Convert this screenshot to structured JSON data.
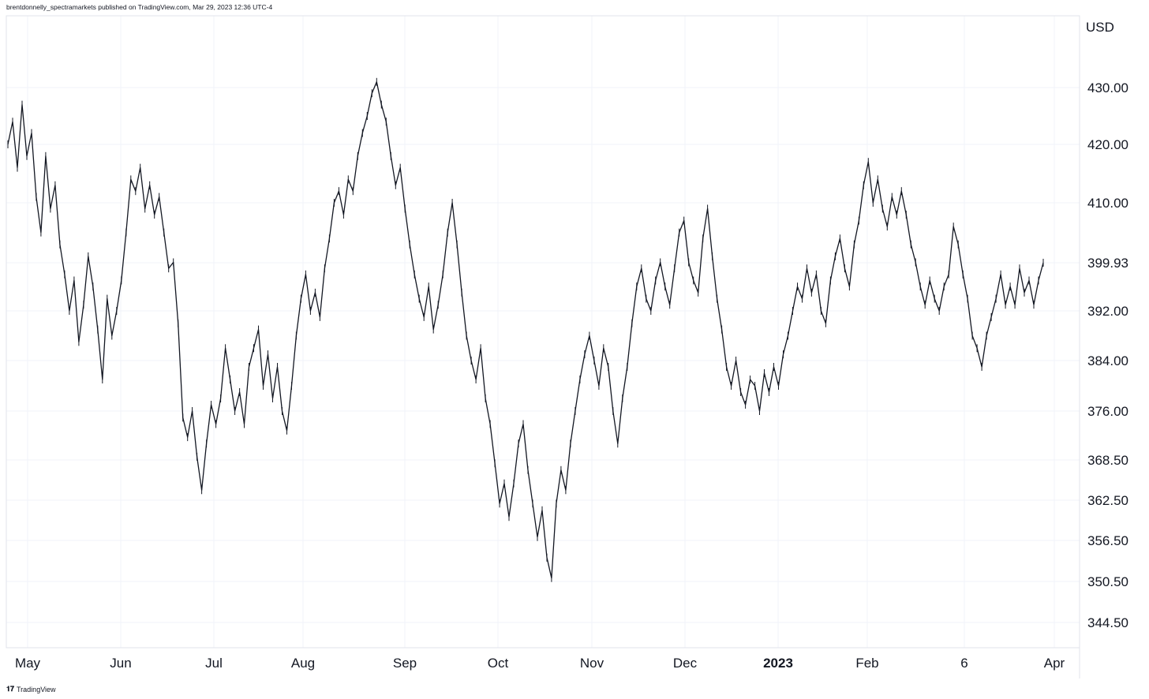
{
  "header": {
    "publisher_line": "brentdonnelly_spectramarkets published on TradingView.com, Mar 29, 2023 12:36 UTC-4"
  },
  "footer": {
    "brand": "TradingView",
    "logo_icon": "tradingview-logo-icon"
  },
  "chart_data": {
    "type": "line",
    "currency_label": "USD",
    "current_price_label": "399.93",
    "y_ticks": [
      "430.00",
      "420.00",
      "410.00",
      "399.93",
      "392.00",
      "384.00",
      "376.00",
      "368.50",
      "362.50",
      "356.50",
      "350.50",
      "344.50"
    ],
    "x_ticks": [
      "May",
      "Jun",
      "Jul",
      "Aug",
      "Sep",
      "Oct",
      "Nov",
      "Dec",
      "2023",
      "Feb",
      "6",
      "Apr"
    ],
    "x_ticks_bold": [
      "2023"
    ],
    "grid": true,
    "colors": {
      "line": "#131722",
      "grid": "#f0f3fa",
      "axis": "#e0e3eb",
      "text": "#131722"
    },
    "series": [
      {
        "values": [
          420,
          424,
          416,
          427,
          418,
          422,
          411,
          405,
          418,
          409,
          413,
          403,
          398,
          392,
          397,
          387,
          393,
          401,
          396,
          389,
          381,
          394,
          388,
          392,
          397,
          405,
          414,
          412,
          416,
          409,
          413,
          408,
          411,
          405,
          399,
          400,
          390,
          375,
          372,
          376,
          369,
          364,
          371,
          377,
          374,
          378,
          386,
          381,
          376,
          379,
          374,
          383,
          386,
          389,
          380,
          385,
          378,
          383,
          376,
          373,
          380,
          388,
          394,
          398,
          392,
          395,
          391,
          399,
          404,
          410,
          412,
          408,
          414,
          412,
          418,
          422,
          425,
          429,
          431,
          427,
          424,
          418,
          413,
          416,
          409,
          403,
          398,
          394,
          391,
          396,
          389,
          393,
          398,
          405,
          410,
          403,
          395,
          388,
          384,
          381,
          386,
          378,
          374,
          368,
          362,
          365,
          360,
          365,
          371,
          374,
          367,
          362,
          357,
          361,
          354,
          351,
          362,
          367,
          364,
          371,
          376,
          381,
          385,
          388,
          384,
          380,
          386,
          383,
          376,
          371,
          378,
          383,
          390,
          396,
          399,
          394,
          392,
          397,
          400,
          396,
          393,
          399,
          405,
          407,
          400,
          397,
          395,
          404,
          409,
          401,
          394,
          389,
          383,
          380,
          384,
          379,
          377,
          381,
          380,
          376,
          382,
          379,
          383,
          380,
          385,
          388,
          392,
          396,
          394,
          399,
          395,
          398,
          392,
          390,
          397,
          401,
          404,
          399,
          396,
          403,
          407,
          413,
          417,
          410,
          414,
          409,
          406,
          411,
          408,
          412,
          408,
          403,
          400,
          396,
          393,
          397,
          394,
          392,
          396,
          398,
          406,
          403,
          398,
          394,
          388,
          386,
          383,
          388,
          391,
          394,
          398,
          393,
          396,
          393,
          399,
          395,
          397,
          393,
          397,
          399.93
        ]
      }
    ]
  }
}
